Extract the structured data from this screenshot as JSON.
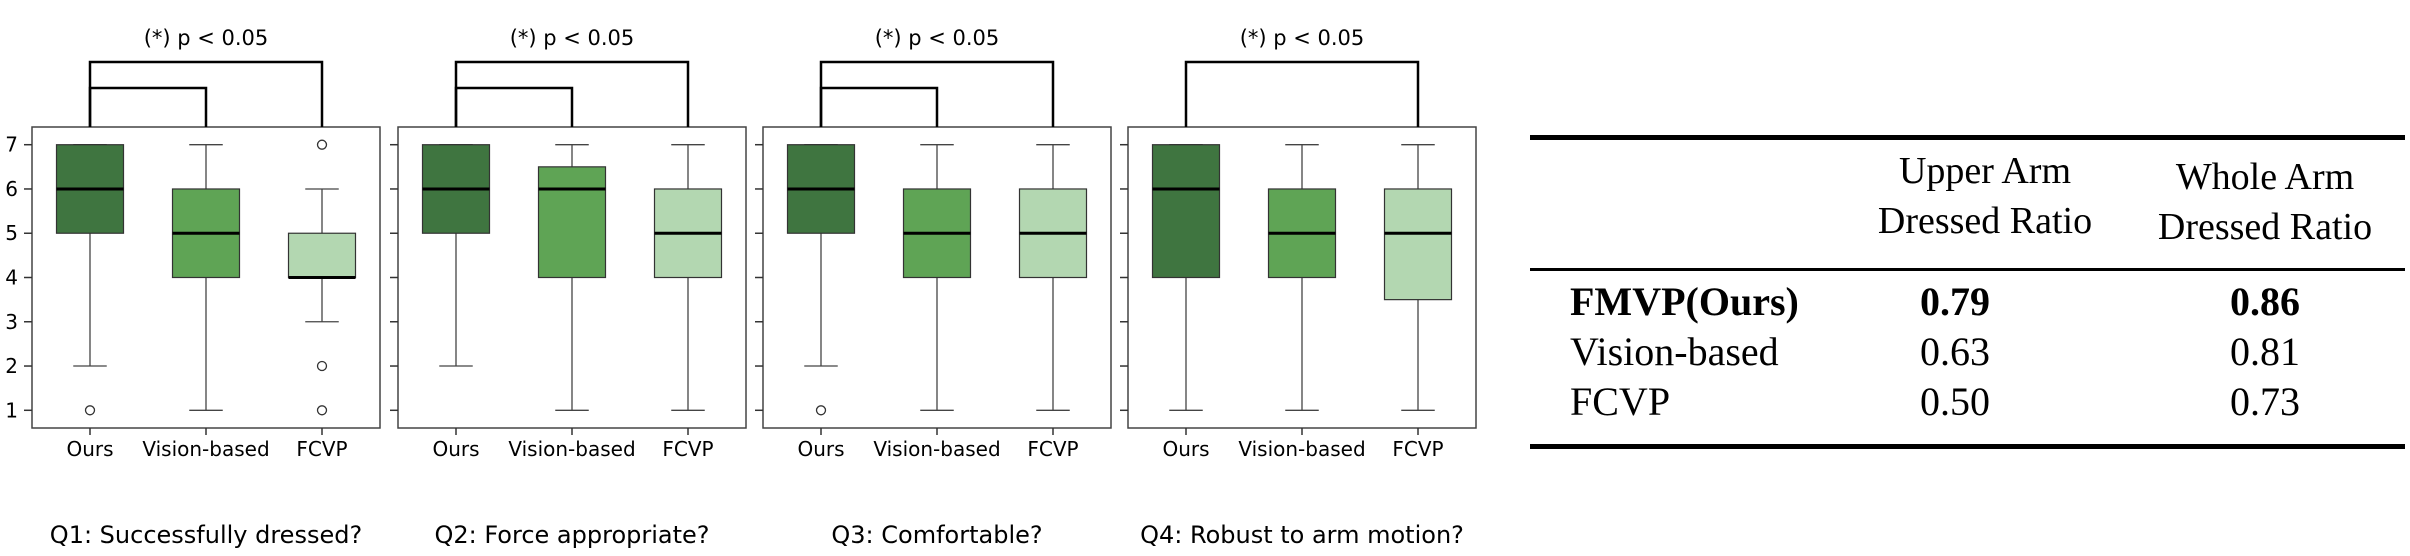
{
  "chart_data": [
    {
      "type": "box",
      "title": "(*) p < 0.05",
      "caption": "Q1: Successfully dressed?",
      "categories": [
        "Ours",
        "Vision-based",
        "FCVP"
      ],
      "ylim": [
        0.6,
        7.4
      ],
      "yticks": [
        "1",
        "2",
        "3",
        "4",
        "5",
        "6",
        "7"
      ],
      "boxes": [
        {
          "q1": 5,
          "median": 6,
          "q3": 7,
          "whisker_low": 2,
          "whisker_high": 7,
          "outliers": [
            1
          ]
        },
        {
          "q1": 4,
          "median": 5,
          "q3": 6,
          "whisker_low": 1,
          "whisker_high": 7,
          "outliers": []
        },
        {
          "q1": 4,
          "median": 4,
          "q3": 5,
          "whisker_low": 3,
          "whisker_high": 6,
          "outliers": [
            7,
            2,
            1
          ]
        }
      ],
      "significance_pairs": [
        [
          0,
          2
        ],
        [
          0,
          1
        ]
      ]
    },
    {
      "type": "box",
      "title": "(*) p < 0.05",
      "caption": "Q2: Force appropriate?",
      "categories": [
        "Ours",
        "Vision-based",
        "FCVP"
      ],
      "ylim": [
        0.6,
        7.4
      ],
      "yticks": [
        "1",
        "2",
        "3",
        "4",
        "5",
        "6",
        "7"
      ],
      "boxes": [
        {
          "q1": 5,
          "median": 6,
          "q3": 7,
          "whisker_low": 2,
          "whisker_high": 7,
          "outliers": []
        },
        {
          "q1": 4,
          "median": 6,
          "q3": 6.5,
          "whisker_low": 1,
          "whisker_high": 7,
          "outliers": []
        },
        {
          "q1": 4,
          "median": 5,
          "q3": 6,
          "whisker_low": 1,
          "whisker_high": 7,
          "outliers": []
        }
      ],
      "significance_pairs": [
        [
          0,
          2
        ],
        [
          0,
          1
        ]
      ]
    },
    {
      "type": "box",
      "title": "(*) p < 0.05",
      "caption": "Q3: Comfortable?",
      "categories": [
        "Ours",
        "Vision-based",
        "FCVP"
      ],
      "ylim": [
        0.6,
        7.4
      ],
      "yticks": [
        "1",
        "2",
        "3",
        "4",
        "5",
        "6",
        "7"
      ],
      "boxes": [
        {
          "q1": 5,
          "median": 6,
          "q3": 7,
          "whisker_low": 2,
          "whisker_high": 7,
          "outliers": [
            1
          ]
        },
        {
          "q1": 4,
          "median": 5,
          "q3": 6,
          "whisker_low": 1,
          "whisker_high": 7,
          "outliers": []
        },
        {
          "q1": 4,
          "median": 5,
          "q3": 6,
          "whisker_low": 1,
          "whisker_high": 7,
          "outliers": []
        }
      ],
      "significance_pairs": [
        [
          0,
          2
        ],
        [
          0,
          1
        ]
      ]
    },
    {
      "type": "box",
      "title": "(*) p < 0.05",
      "caption": "Q4: Robust to arm motion?",
      "categories": [
        "Ours",
        "Vision-based",
        "FCVP"
      ],
      "ylim": [
        0.6,
        7.4
      ],
      "yticks": [
        "1",
        "2",
        "3",
        "4",
        "5",
        "6",
        "7"
      ],
      "boxes": [
        {
          "q1": 4,
          "median": 6,
          "q3": 7,
          "whisker_low": 1,
          "whisker_high": 7,
          "outliers": []
        },
        {
          "q1": 4,
          "median": 5,
          "q3": 6,
          "whisker_low": 1,
          "whisker_high": 7,
          "outliers": []
        },
        {
          "q1": 3.5,
          "median": 5,
          "q3": 6,
          "whisker_low": 1,
          "whisker_high": 7,
          "outliers": []
        }
      ],
      "significance_pairs": [
        [
          0,
          2
        ]
      ]
    }
  ],
  "colors": [
    "#3f7540",
    "#5fa455",
    "#b3d7b1"
  ],
  "table": {
    "headers": [
      [
        "Upper Arm",
        "Dressed Ratio"
      ],
      [
        "Whole Arm",
        "Dressed Ratio"
      ]
    ],
    "rows": [
      {
        "method": "FMVP(Ours)",
        "upper": "0.79",
        "whole": "0.86",
        "bold": true
      },
      {
        "method": "Vision-based",
        "upper": "0.63",
        "whole": "0.81",
        "bold": false
      },
      {
        "method": "FCVP",
        "upper": "0.50",
        "whole": "0.73",
        "bold": false
      }
    ]
  }
}
